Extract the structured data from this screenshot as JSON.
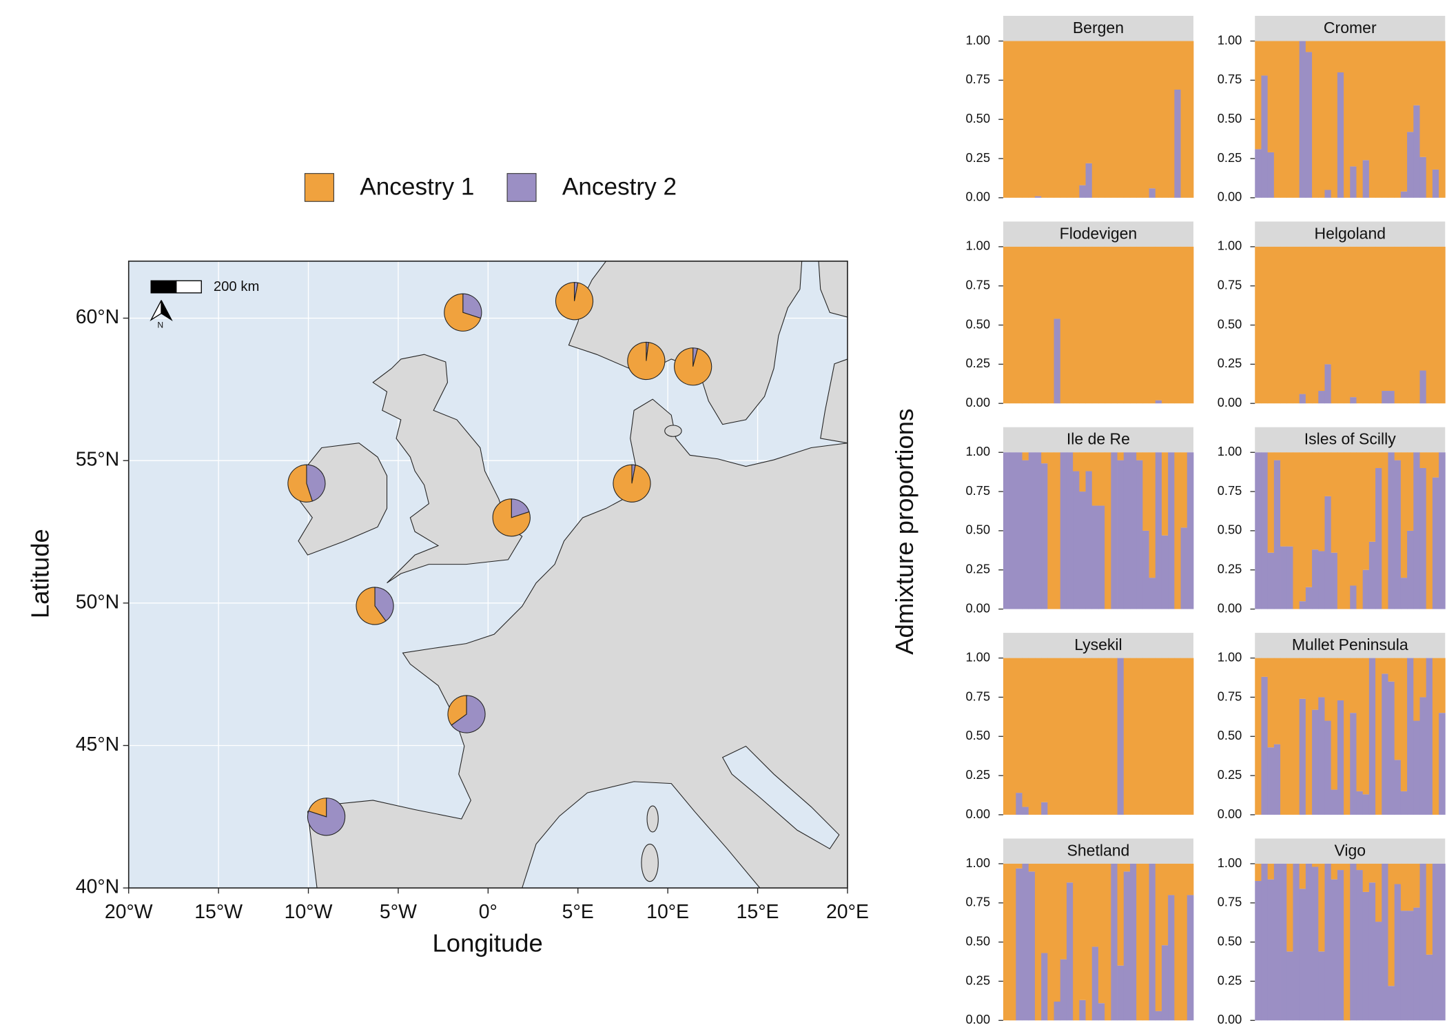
{
  "chart_data": [
    {
      "type": "pie-map",
      "xlabel": "Longitude",
      "ylabel": "Latitude",
      "xlim": [
        -20,
        20
      ],
      "ylim": [
        40,
        62
      ],
      "xticks": [
        {
          "value": -20,
          "label": "20°W"
        },
        {
          "value": -15,
          "label": "15°W"
        },
        {
          "value": -10,
          "label": "10°W"
        },
        {
          "value": -5,
          "label": "5°W"
        },
        {
          "value": 0,
          "label": "0°"
        },
        {
          "value": 5,
          "label": "5°E"
        },
        {
          "value": 10,
          "label": "10°E"
        },
        {
          "value": 15,
          "label": "15°E"
        },
        {
          "value": 20,
          "label": "20°E"
        }
      ],
      "yticks": [
        {
          "value": 40,
          "label": "40°N"
        },
        {
          "value": 45,
          "label": "45°N"
        },
        {
          "value": 50,
          "label": "50°N"
        },
        {
          "value": 55,
          "label": "55°N"
        },
        {
          "value": 60,
          "label": "60°N"
        }
      ],
      "grid": true,
      "legend": "top",
      "scale_label": "200 km",
      "north_label": "N",
      "lon": [
        4.8,
        1.3,
        8.8,
        8.0,
        -1.2,
        -6.3,
        11.4,
        -10.1,
        -1.4,
        -9.0
      ],
      "lat": [
        60.6,
        53.0,
        58.5,
        54.2,
        46.1,
        49.9,
        58.3,
        54.2,
        60.2,
        42.5
      ],
      "series": [
        {
          "name": "Ancestry 1",
          "color": "#f0a23e",
          "values": [
            0.97,
            0.8,
            0.98,
            0.97,
            0.35,
            0.6,
            0.96,
            0.55,
            0.7,
            0.2
          ]
        },
        {
          "name": "Ancestry 2",
          "color": "#9b8fc4",
          "values": [
            0.03,
            0.2,
            0.02,
            0.03,
            0.65,
            0.4,
            0.04,
            0.45,
            0.3,
            0.8
          ]
        }
      ]
    },
    {
      "type": "stacked-bar-facets",
      "ylabel": "Admixture proportions",
      "ylim": [
        0,
        1
      ],
      "yticks": [
        {
          "value": 1,
          "label": "1.00"
        },
        {
          "value": 0.75,
          "label": "0.75"
        },
        {
          "value": 0.5,
          "label": "0.50"
        },
        {
          "value": 0.25,
          "label": "0.25"
        },
        {
          "value": 0,
          "label": "0.00"
        }
      ],
      "panels": [
        {
          "title": "Bergen",
          "series": [
            {
              "values": [
                1,
                1,
                1,
                1,
                1,
                0.99,
                1,
                1,
                1,
                1,
                1,
                1,
                0.92,
                0.78,
                1,
                1,
                1,
                1,
                1,
                1,
                1,
                1,
                1,
                0.94,
                1,
                1,
                1,
                0.31,
                1,
                1
              ]
            },
            {
              "values": [
                0,
                0,
                0,
                0,
                0,
                0.01,
                0,
                0,
                0,
                0,
                0,
                0,
                0.08,
                0.22,
                0,
                0,
                0,
                0,
                0,
                0,
                0,
                0,
                0,
                0.06,
                0,
                0,
                0,
                0.69,
                0,
                0
              ]
            }
          ]
        },
        {
          "title": "Cromer",
          "series": [
            {
              "values": [
                0.69,
                0.22,
                0.71,
                1,
                1,
                1,
                1,
                0,
                0.07,
                1,
                1,
                0.95,
                1,
                0.2,
                1,
                0.8,
                1,
                0.76,
                1,
                1,
                1,
                1,
                1,
                0.96,
                0.58,
                0.41,
                0.74,
                1,
                0.82,
                1
              ]
            },
            {
              "values": [
                0.31,
                0.78,
                0.29,
                0,
                0,
                0,
                0,
                1,
                0.93,
                0,
                0,
                0.05,
                0,
                0.8,
                0,
                0.2,
                0,
                0.24,
                0,
                0,
                0,
                0,
                0,
                0.04,
                0.42,
                0.59,
                0.26,
                0,
                0.18,
                0
              ]
            }
          ]
        },
        {
          "title": "Flodevigen",
          "series": [
            {
              "values": [
                1,
                1,
                1,
                1,
                1,
                1,
                1,
                1,
                0.46,
                1,
                1,
                1,
                1,
                1,
                1,
                1,
                1,
                1,
                1,
                1,
                1,
                1,
                1,
                1,
                0.98,
                1,
                1,
                1,
                1,
                1
              ]
            },
            {
              "values": [
                0,
                0,
                0,
                0,
                0,
                0,
                0,
                0,
                0.54,
                0,
                0,
                0,
                0,
                0,
                0,
                0,
                0,
                0,
                0,
                0,
                0,
                0,
                0,
                0,
                0.02,
                0,
                0,
                0,
                0,
                0
              ]
            }
          ]
        },
        {
          "title": "Helgoland",
          "series": [
            {
              "values": [
                1,
                1,
                1,
                1,
                1,
                1,
                1,
                0.94,
                1,
                1,
                0.92,
                0.75,
                1,
                1,
                1,
                0.96,
                1,
                1,
                1,
                1,
                0.92,
                0.92,
                1,
                1,
                1,
                1,
                0.79,
                1,
                1,
                1
              ]
            },
            {
              "values": [
                0,
                0,
                0,
                0,
                0,
                0,
                0,
                0.06,
                0,
                0,
                0.08,
                0.25,
                0,
                0,
                0,
                0.04,
                0,
                0,
                0,
                0,
                0.08,
                0.08,
                0,
                0,
                0,
                0,
                0.21,
                0,
                0,
                0
              ]
            }
          ]
        },
        {
          "title": "Ile de Re",
          "series": [
            {
              "values": [
                0,
                0,
                0,
                0.05,
                0,
                0,
                0.07,
                1,
                1,
                0,
                0,
                0.12,
                0.25,
                0.12,
                0.34,
                0.34,
                1,
                0,
                0.05,
                0,
                0,
                0.05,
                0.5,
                0.8,
                0,
                0.53,
                0,
                1,
                0.48,
                0
              ]
            },
            {
              "values": [
                1,
                1,
                1,
                0.95,
                1,
                1,
                0.93,
                0,
                0,
                1,
                1,
                0.88,
                0.75,
                0.88,
                0.66,
                0.66,
                0,
                1,
                0.95,
                1,
                1,
                0.95,
                0.5,
                0.2,
                1,
                0.47,
                1,
                0,
                0.52,
                1
              ]
            }
          ]
        },
        {
          "title": "Isles of Scilly",
          "series": [
            {
              "values": [
                0,
                0,
                0.64,
                0.05,
                0.6,
                0.6,
                1,
                0.95,
                0.86,
                0.62,
                0.63,
                0.28,
                0.64,
                1,
                1,
                0.85,
                1,
                0.75,
                0.57,
                0.1,
                1,
                0,
                0.05,
                0.8,
                0.5,
                0,
                0.1,
                1,
                0.16,
                0
              ]
            },
            {
              "values": [
                1,
                1,
                0.36,
                0.95,
                0.4,
                0.4,
                0,
                0.05,
                0.14,
                0.38,
                0.37,
                0.72,
                0.36,
                0,
                0,
                0.15,
                0,
                0.25,
                0.43,
                0.9,
                0,
                1,
                0.95,
                0.2,
                0.5,
                1,
                0.9,
                0,
                0.84,
                1
              ]
            }
          ]
        },
        {
          "title": "Lysekil",
          "series": [
            {
              "values": [
                1,
                1,
                0.86,
                0.95,
                1,
                1,
                0.92,
                1,
                1,
                1,
                1,
                1,
                1,
                1,
                1,
                1,
                1,
                1,
                0,
                1,
                1,
                1,
                1,
                1,
                1,
                1,
                1,
                1,
                1,
                1
              ]
            },
            {
              "values": [
                0,
                0,
                0.14,
                0.05,
                0,
                0,
                0.08,
                0,
                0,
                0,
                0,
                0,
                0,
                0,
                0,
                0,
                0,
                0,
                1,
                0,
                0,
                0,
                0,
                0,
                0,
                0,
                0,
                0,
                0,
                0
              ]
            }
          ]
        },
        {
          "title": "Mullet Peninsula",
          "series": [
            {
              "values": [
                1,
                0.12,
                0.57,
                0.55,
                1,
                1,
                1,
                0.26,
                1,
                0.33,
                0.25,
                0.4,
                0.84,
                0.27,
                1,
                0.35,
                0.85,
                0.87,
                0,
                1,
                0.1,
                0.15,
                0.65,
                0.85,
                0,
                0.4,
                0.25,
                0,
                1,
                0.35
              ]
            },
            {
              "values": [
                0,
                0.88,
                0.43,
                0.45,
                0,
                0,
                0,
                0.74,
                0,
                0.67,
                0.75,
                0.6,
                0.16,
                0.73,
                0,
                0.65,
                0.15,
                0.13,
                1,
                0,
                0.9,
                0.85,
                0.35,
                0.15,
                1,
                0.6,
                0.75,
                1,
                0,
                0.65
              ]
            }
          ]
        },
        {
          "title": "Shetland",
          "series": [
            {
              "values": [
                1,
                1,
                0.03,
                0,
                0.05,
                1,
                0.57,
                1,
                0.88,
                0.61,
                0.12,
                1,
                0.87,
                1,
                0.53,
                0.89,
                1,
                0,
                0.65,
                0.05,
                0,
                1,
                1,
                0,
                0.94,
                0.52,
                0.2,
                1,
                1,
                0.2
              ]
            },
            {
              "values": [
                0,
                0,
                0.97,
                1,
                0.95,
                0,
                0.43,
                0,
                0.12,
                0.39,
                0.88,
                0,
                0.13,
                0,
                0.47,
                0.11,
                0,
                1,
                0.35,
                0.95,
                1,
                0,
                0,
                1,
                0.06,
                0.48,
                0.8,
                0,
                0,
                0.8
              ]
            }
          ]
        },
        {
          "title": "Vigo",
          "series": [
            {
              "values": [
                0.11,
                0,
                0.1,
                0,
                0,
                0.56,
                0,
                0.16,
                0,
                0.02,
                0.56,
                0,
                0.1,
                0.04,
                1,
                0,
                0.04,
                0.18,
                0.12,
                0.37,
                0,
                0.78,
                0.13,
                0.3,
                0.3,
                0.28,
                0,
                0.58,
                0,
                0
              ]
            },
            {
              "values": [
                0.89,
                1,
                0.9,
                1,
                1,
                0.44,
                1,
                0.84,
                1,
                0.98,
                0.44,
                1,
                0.9,
                0.96,
                0,
                1,
                0.96,
                0.82,
                0.88,
                0.63,
                1,
                0.22,
                0.87,
                0.7,
                0.7,
                0.72,
                1,
                0.42,
                1,
                1
              ]
            }
          ]
        }
      ]
    }
  ]
}
